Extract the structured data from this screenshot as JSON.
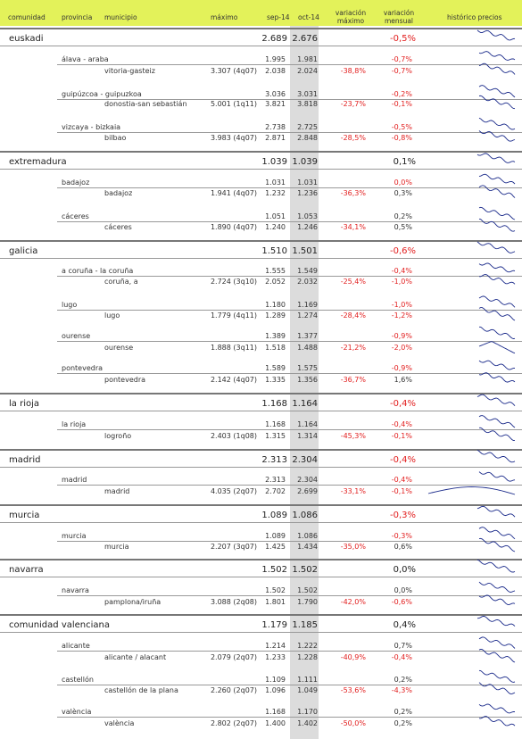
{
  "header": {
    "comunidad": "comunidad",
    "provincia": "provincia",
    "municipio": "municipio",
    "maximo": "máximo",
    "sep": "sep-14",
    "oct": "oct-14",
    "var_max": "variación máximo",
    "var_mens": "variación mensual",
    "historico": "histórico precios"
  },
  "groups": [
    {
      "name": "euskadi",
      "sep": "2.689",
      "oct": "2.676",
      "var_mens": "-0,5%",
      "var_mens_neg": true,
      "provinces": [
        {
          "name": "álava - araba",
          "sep": "1.995",
          "oct": "1.981",
          "var_mens": "-0,7%",
          "var_mens_neg": true,
          "muni": {
            "name": "vitoria-gasteiz",
            "max": "3.307 (4q07)",
            "sep": "2.038",
            "oct": "2.024",
            "var_max": "-38,8%",
            "var_mens": "-0,7%",
            "var_mens_neg": true
          }
        },
        {
          "name": "guipúzcoa - guipuzkoa",
          "sep": "3.036",
          "oct": "3.031",
          "var_mens": "-0,2%",
          "var_mens_neg": true,
          "muni": {
            "name": "donostia-san sebastián",
            "max": "5.001 (1q11)",
            "sep": "3.821",
            "oct": "3.818",
            "var_max": "-23,7%",
            "var_mens": "-0,1%",
            "var_mens_neg": true
          }
        },
        {
          "name": "vizcaya - bizkaia",
          "sep": "2.738",
          "oct": "2.725",
          "var_mens": "-0,5%",
          "var_mens_neg": true,
          "muni": {
            "name": "bilbao",
            "max": "3.983 (4q07)",
            "sep": "2.871",
            "oct": "2.848",
            "var_max": "-28,5%",
            "var_mens": "-0,8%",
            "var_mens_neg": true
          }
        }
      ]
    },
    {
      "name": "extremadura",
      "sep": "1.039",
      "oct": "1.039",
      "var_mens": "0,1%",
      "var_mens_neg": false,
      "provinces": [
        {
          "name": "badajoz",
          "sep": "1.031",
          "oct": "1.031",
          "var_mens": "0,0%",
          "var_mens_neg": true,
          "muni": {
            "name": "badajoz",
            "max": "1.941 (4q07)",
            "sep": "1.232",
            "oct": "1.236",
            "var_max": "-36,3%",
            "var_mens": "0,3%",
            "var_mens_neg": false
          }
        },
        {
          "name": "cáceres",
          "sep": "1.051",
          "oct": "1.053",
          "var_mens": "0,2%",
          "var_mens_neg": false,
          "muni": {
            "name": "cáceres",
            "max": "1.890 (4q07)",
            "sep": "1.240",
            "oct": "1.246",
            "var_max": "-34,1%",
            "var_mens": "0,5%",
            "var_mens_neg": false
          }
        }
      ]
    },
    {
      "name": "galicia",
      "sep": "1.510",
      "oct": "1.501",
      "var_mens": "-0,6%",
      "var_mens_neg": true,
      "provinces": [
        {
          "name": "a coruña - la coruña",
          "sep": "1.555",
          "oct": "1.549",
          "var_mens": "-0,4%",
          "var_mens_neg": true,
          "muni": {
            "name": "coruña, a",
            "max": "2.724 (3q10)",
            "sep": "2.052",
            "oct": "2.032",
            "var_max": "-25,4%",
            "var_mens": "-1,0%",
            "var_mens_neg": true
          }
        },
        {
          "name": "lugo",
          "sep": "1.180",
          "oct": "1.169",
          "var_mens": "-1,0%",
          "var_mens_neg": true,
          "muni": {
            "name": "lugo",
            "max": "1.779 (4q11)",
            "sep": "1.289",
            "oct": "1.274",
            "var_max": "-28,4%",
            "var_mens": "-1,2%",
            "var_mens_neg": true
          }
        },
        {
          "name": "ourense",
          "sep": "1.389",
          "oct": "1.377",
          "var_mens": "-0,9%",
          "var_mens_neg": true,
          "muni": {
            "name": "ourense",
            "max": "1.888 (3q11)",
            "sep": "1.518",
            "oct": "1.488",
            "var_max": "-21,2%",
            "var_mens": "-2,0%",
            "var_mens_neg": true
          }
        },
        {
          "name": "pontevedra",
          "sep": "1.589",
          "oct": "1.575",
          "var_mens": "-0,9%",
          "var_mens_neg": true,
          "muni": {
            "name": "pontevedra",
            "max": "2.142 (4q07)",
            "sep": "1.335",
            "oct": "1.356",
            "var_max": "-36,7%",
            "var_mens": "1,6%",
            "var_mens_neg": false
          }
        }
      ]
    },
    {
      "name": "la rioja",
      "sep": "1.168",
      "oct": "1.164",
      "var_mens": "-0,4%",
      "var_mens_neg": true,
      "provinces": [
        {
          "name": "la rioja",
          "sep": "1.168",
          "oct": "1.164",
          "var_mens": "-0,4%",
          "var_mens_neg": true,
          "muni": {
            "name": "logroño",
            "max": "2.403 (1q08)",
            "sep": "1.315",
            "oct": "1.314",
            "var_max": "-45,3%",
            "var_mens": "-0,1%",
            "var_mens_neg": true
          }
        }
      ]
    },
    {
      "name": "madrid",
      "sep": "2.313",
      "oct": "2.304",
      "var_mens": "-0,4%",
      "var_mens_neg": true,
      "provinces": [
        {
          "name": "madrid",
          "sep": "2.313",
          "oct": "2.304",
          "var_mens": "-0,4%",
          "var_mens_neg": true,
          "muni": {
            "name": "madrid",
            "max": "4.035 (2q07)",
            "sep": "2.702",
            "oct": "2.699",
            "var_max": "-33,1%",
            "var_mens": "-0,1%",
            "var_mens_neg": true
          }
        }
      ]
    },
    {
      "name": "murcia",
      "sep": "1.089",
      "oct": "1.086",
      "var_mens": "-0,3%",
      "var_mens_neg": true,
      "provinces": [
        {
          "name": "murcia",
          "sep": "1.089",
          "oct": "1.086",
          "var_mens": "-0,3%",
          "var_mens_neg": true,
          "muni": {
            "name": "murcia",
            "max": "2.207 (3q07)",
            "sep": "1.425",
            "oct": "1.434",
            "var_max": "-35,0%",
            "var_mens": "0,6%",
            "var_mens_neg": false
          }
        }
      ]
    },
    {
      "name": "navarra",
      "sep": "1.502",
      "oct": "1.502",
      "var_mens": "0,0%",
      "var_mens_neg": false,
      "provinces": [
        {
          "name": "navarra",
          "sep": "1.502",
          "oct": "1.502",
          "var_mens": "0,0%",
          "var_mens_neg": false,
          "muni": {
            "name": "pamplona/iruña",
            "max": "3.088 (2q08)",
            "sep": "1.801",
            "oct": "1.790",
            "var_max": "-42,0%",
            "var_mens": "-0,6%",
            "var_mens_neg": true
          }
        }
      ]
    },
    {
      "name": "comunidad valenciana",
      "sep": "1.179",
      "oct": "1.185",
      "var_mens": "0,4%",
      "var_mens_neg": false,
      "provinces": [
        {
          "name": "alicante",
          "sep": "1.214",
          "oct": "1.222",
          "var_mens": "0,7%",
          "var_mens_neg": false,
          "muni": {
            "name": "alicante / alacant",
            "max": "2.079 (2q07)",
            "sep": "1.233",
            "oct": "1.228",
            "var_max": "-40,9%",
            "var_mens": "-0,4%",
            "var_mens_neg": true
          }
        },
        {
          "name": "castellón",
          "sep": "1.109",
          "oct": "1.111",
          "var_mens": "0,2%",
          "var_mens_neg": false,
          "muni": {
            "name": "castellón de la plana",
            "max": "2.260 (2q07)",
            "sep": "1.096",
            "oct": "1.049",
            "var_max": "-53,6%",
            "var_mens": "-4,3%",
            "var_mens_neg": true
          }
        },
        {
          "name": "valència",
          "sep": "1.168",
          "oct": "1.170",
          "var_mens": "0,2%",
          "var_mens_neg": false,
          "muni": {
            "name": "valència",
            "max": "2.802 (2q07)",
            "sep": "1.400",
            "oct": "1.402",
            "var_max": "-50,0%",
            "var_mens": "0,2%",
            "var_mens_neg": false
          }
        }
      ]
    }
  ],
  "colors": {
    "header_bg": "#e3f25a",
    "negative": "#e21f1f",
    "highlight_col": "#dcdcdc",
    "sparkline": "#1a2a8a"
  },
  "icons": {
    "sparkline": "price-history-sparkline"
  }
}
